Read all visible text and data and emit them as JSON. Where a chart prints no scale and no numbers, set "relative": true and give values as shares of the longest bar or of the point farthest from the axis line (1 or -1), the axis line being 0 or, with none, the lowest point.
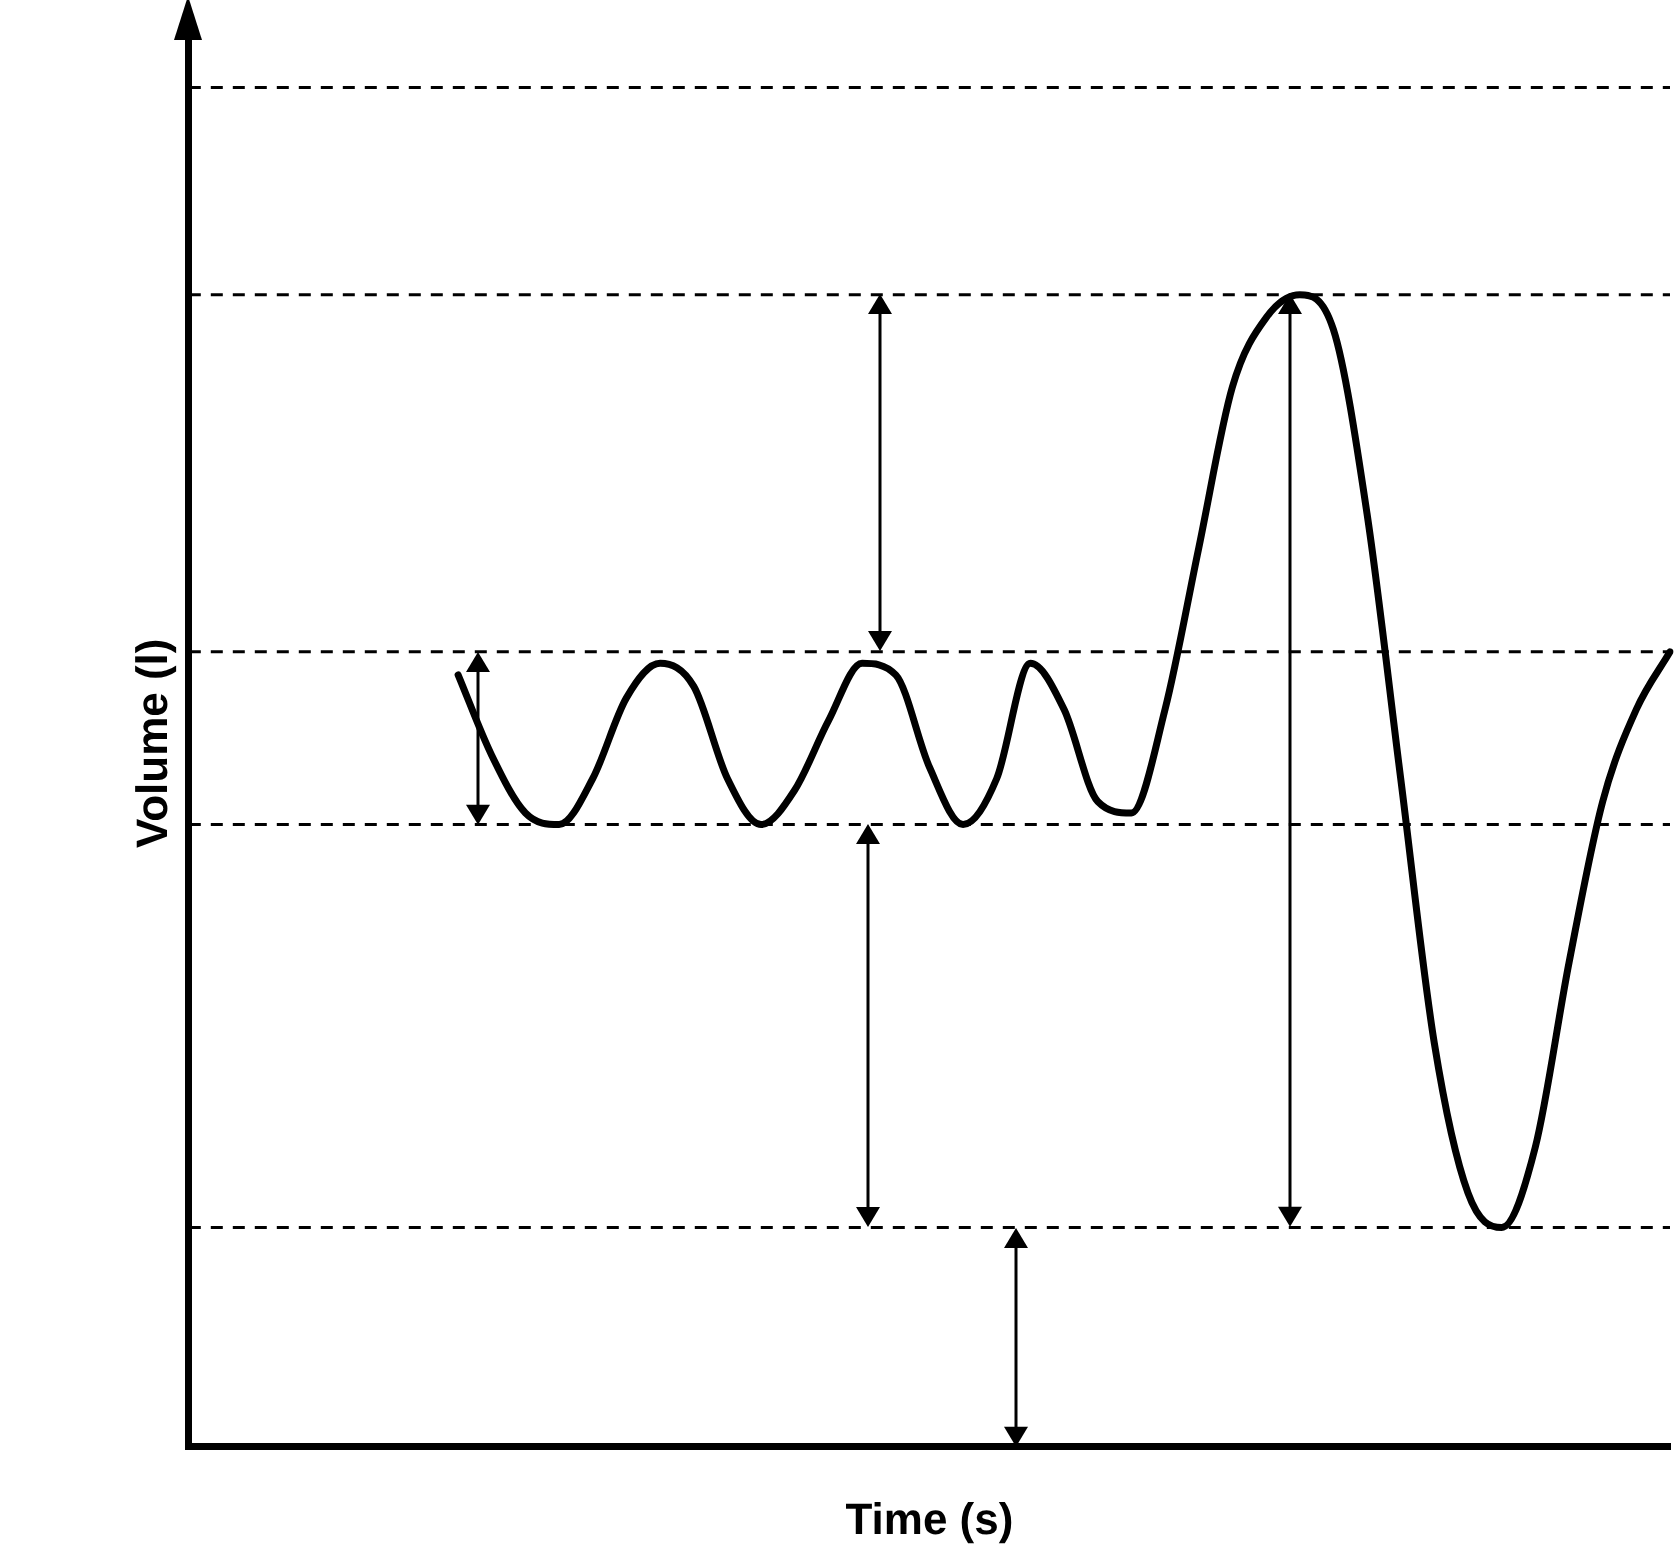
{
  "chart_data": {
    "type": "line",
    "xlabel": "Time (s)",
    "ylabel": "Volume (l)",
    "relative": true,
    "grid": false,
    "legend": false,
    "marker": "none",
    "line_style": "solid",
    "categories": [
      null,
      null,
      null,
      null,
      null,
      null,
      null,
      null,
      null,
      null,
      null,
      null,
      null,
      null,
      null,
      null,
      null,
      null,
      null,
      null,
      null,
      null,
      null,
      null,
      null,
      null,
      null,
      null,
      null,
      null,
      null,
      null,
      null,
      null,
      null,
      null,
      null,
      null,
      null,
      null,
      null,
      null,
      null,
      null,
      null
    ],
    "series": [
      {
        "color": "#000000",
        "values": [
          null,
          null,
          null,
          null,
          null,
          null,
          null,
          null,
          0.67,
          0.6,
          0.55,
          0.54,
          0.58,
          0.65,
          0.68,
          0.66,
          0.58,
          0.54,
          0.57,
          0.63,
          0.68,
          0.67,
          0.59,
          0.54,
          0.58,
          0.68,
          0.64,
          0.56,
          0.55,
          0.64,
          0.78,
          0.92,
          0.98,
          1,
          0.97,
          0.81,
          0.58,
          0.35,
          0.22,
          0.19,
          0.26,
          0.42,
          0.56,
          0.64,
          0.69
        ]
      }
    ],
    "ref_lines": [
      {
        "axis": "y",
        "value": 1.18,
        "color": "#000000",
        "line_style": "dashed"
      },
      {
        "axis": "y",
        "value": 1,
        "color": "#000000",
        "line_style": "dashed"
      },
      {
        "axis": "y",
        "value": 0.69,
        "color": "#000000",
        "line_style": "dashed"
      },
      {
        "axis": "y",
        "value": 0.54,
        "color": "#000000",
        "line_style": "dashed"
      },
      {
        "axis": "y",
        "value": 0.19,
        "color": "#000000",
        "line_style": "dashed"
      }
    ]
  }
}
